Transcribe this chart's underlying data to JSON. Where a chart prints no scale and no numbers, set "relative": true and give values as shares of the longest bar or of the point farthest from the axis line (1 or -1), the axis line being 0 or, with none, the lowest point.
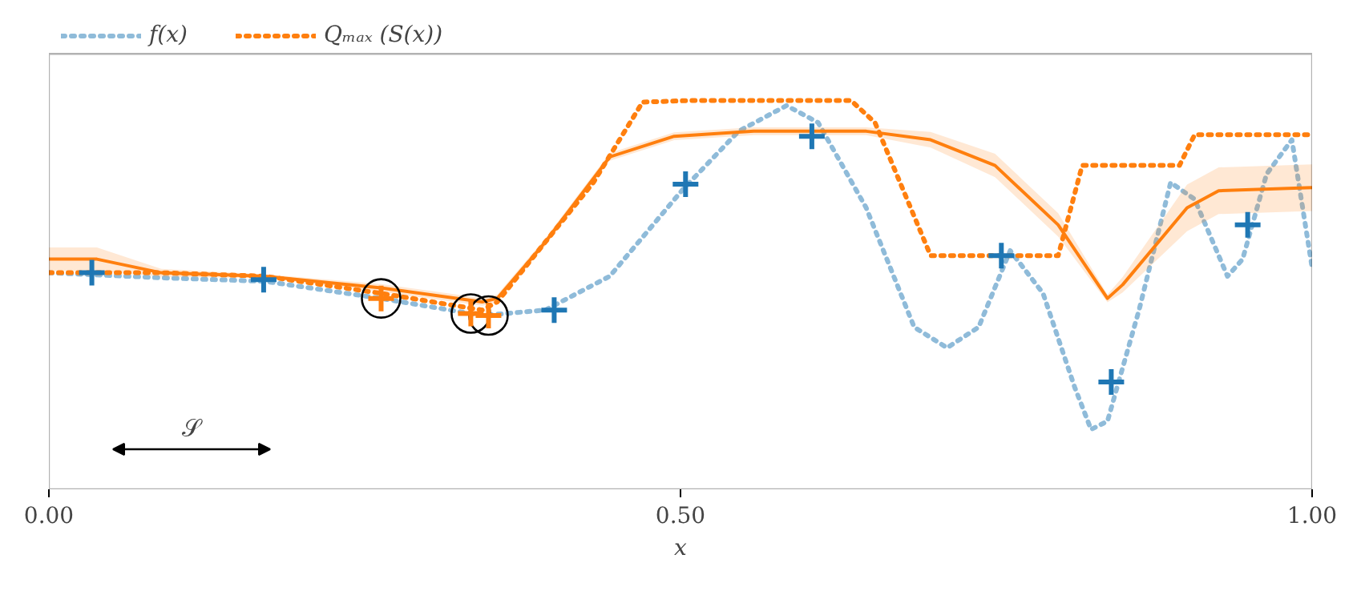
{
  "chart_data": {
    "type": "line",
    "relative": true,
    "xlabel": "x",
    "xlim": [
      0,
      1
    ],
    "xticks": [
      {
        "value": 0,
        "label": "0.00"
      },
      {
        "value": 0.5,
        "label": "0.50"
      },
      {
        "value": 1,
        "label": "1.00"
      }
    ],
    "tick_labels": "x",
    "grid": false,
    "legend": "top left",
    "annotations": [
      "𝒮"
    ],
    "series": [
      {
        "name": "f(x)",
        "line_style": "dotted",
        "color": "#8fbbd9",
        "x": [
          0,
          0.089,
          0.171,
          0.263,
          0.343,
          0.393,
          0.444,
          0.501,
          0.546,
          0.584,
          0.609,
          0.647,
          0.685,
          0.711,
          0.736,
          0.761,
          0.787,
          0.812,
          0.825,
          0.838,
          0.863,
          0.888,
          0.907,
          0.933,
          0.945,
          0.964,
          0.984,
          1
        ],
        "values": [
          0.557,
          0.544,
          0.535,
          0.491,
          0.447,
          0.461,
          0.548,
          0.768,
          0.921,
          0.987,
          0.943,
          0.724,
          0.417,
          0.364,
          0.417,
          0.614,
          0.504,
          0.263,
          0.154,
          0.175,
          0.461,
          0.789,
          0.746,
          0.548,
          0.592,
          0.811,
          0.899,
          0.57
        ]
      },
      {
        "name": "Qₘₐₓ (S(x))",
        "line_style": "dotted",
        "color": "#ff7f0e",
        "x": [
          0,
          0.089,
          0.171,
          0.263,
          0.343,
          0.355,
          0.393,
          0.431,
          0.47,
          0.508,
          0.635,
          0.654,
          0.698,
          0.799,
          0.818,
          0.895,
          0.907,
          1
        ],
        "values": [
          0.557,
          0.557,
          0.548,
          0.504,
          0.461,
          0.482,
          0.636,
          0.789,
          0.996,
          1,
          1,
          0.943,
          0.601,
          0.601,
          0.833,
          0.833,
          0.912,
          0.912
        ]
      },
      {
        "line_style": "solid",
        "color": "#ff7f0e",
        "x": [
          0,
          0.038,
          0.089,
          0.171,
          0.263,
          0.343,
          0.355,
          0.393,
          0.444,
          0.495,
          0.558,
          0.647,
          0.698,
          0.749,
          0.799,
          0.838,
          0.85,
          0.901,
          0.926,
          1
        ],
        "values": [
          0.592,
          0.592,
          0.557,
          0.548,
          0.518,
          0.482,
          0.491,
          0.636,
          0.855,
          0.908,
          0.921,
          0.921,
          0.899,
          0.833,
          0.68,
          0.491,
          0.526,
          0.724,
          0.768,
          0.776
        ],
        "lower": [
          0.562,
          0.562,
          0.547,
          0.543,
          0.508,
          0.472,
          0.481,
          0.626,
          0.845,
          0.898,
          0.911,
          0.911,
          0.879,
          0.803,
          0.65,
          0.481,
          0.506,
          0.664,
          0.708,
          0.716
        ],
        "upper": [
          0.622,
          0.622,
          0.567,
          0.553,
          0.528,
          0.492,
          0.501,
          0.646,
          0.865,
          0.918,
          0.931,
          0.931,
          0.919,
          0.863,
          0.71,
          0.501,
          0.546,
          0.784,
          0.828,
          0.836
        ]
      },
      {
        "type": "scatter",
        "marker": "cross",
        "color": "#1f77b4",
        "x": [
          0.034,
          0.17,
          0.4,
          0.504,
          0.604,
          0.754,
          0.841,
          0.949
        ],
        "values": [
          0.557,
          0.539,
          0.461,
          0.785,
          0.908,
          0.601,
          0.276,
          0.68
        ]
      },
      {
        "type": "scatter",
        "marker": "cross",
        "color": "#ff7f0e",
        "x": [
          0.263,
          0.334,
          0.348
        ],
        "values": [
          0.491,
          0.452,
          0.447
        ]
      }
    ]
  }
}
